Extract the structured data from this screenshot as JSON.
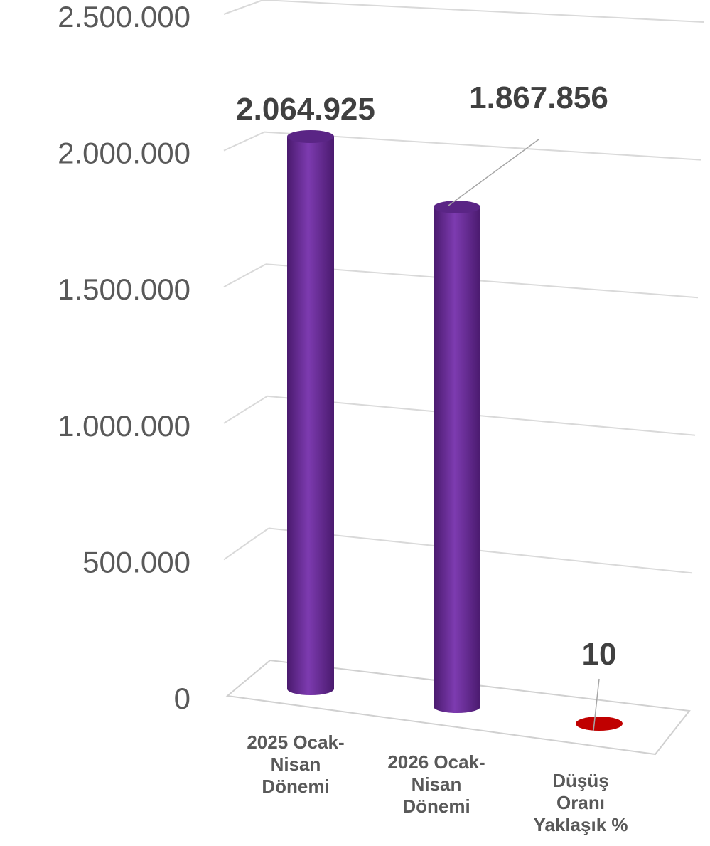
{
  "chart_data": {
    "type": "bar",
    "title": "",
    "xlabel": "",
    "ylabel": "",
    "ylim": [
      0,
      2500000
    ],
    "y_ticks": [
      "0",
      "500.000",
      "1.000.000",
      "1.500.000",
      "2.000.000",
      "2.500.000"
    ],
    "grid": true,
    "legend": "none",
    "bar_shape": "cylinder-3d",
    "categories": [
      [
        "2025 Ocak-",
        "Nisan",
        "Dönemi"
      ],
      [
        "2026 Ocak-",
        "Nisan",
        "Dönemi"
      ],
      [
        "Düşüş",
        "Oranı",
        "Yaklaşık %"
      ]
    ],
    "values": [
      2064925,
      1867856,
      10
    ],
    "value_labels": [
      "2.064.925",
      "1.867.856",
      "10"
    ],
    "colors": [
      "#7030a0",
      "#7030a0",
      "#c00000"
    ]
  }
}
